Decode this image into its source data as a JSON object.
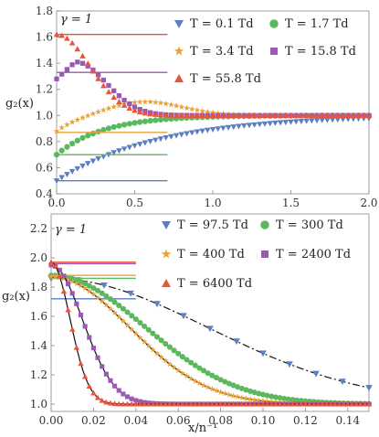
{
  "chart_data": [
    {
      "type": "scatter",
      "annotation": "γ = 1",
      "ylabel": "g₂(x)",
      "xlabel": "",
      "xlim": [
        0,
        2.0
      ],
      "ylim": [
        0.4,
        1.8
      ],
      "xticks": [
        "0.0",
        "0.5",
        "1.0",
        "1.5",
        "2.0"
      ],
      "yticks": [
        "0.4",
        "0.6",
        "0.8",
        "1.0",
        "1.2",
        "1.4",
        "1.6",
        "1.8"
      ],
      "legend_position": "top-right",
      "series": [
        {
          "name": "T = 0.1 Td",
          "marker": "triangle-down",
          "color": "#5b7fc0",
          "g0": 0.5,
          "tau": 0.65,
          "peak": 0.0,
          "peak_x": 0.0,
          "width": 1.0,
          "x_end": 2.0,
          "asymptote_y": 0.5,
          "asymptote_x_end": 0.71
        },
        {
          "name": "T = 1.7 Td",
          "marker": "circle",
          "color": "#5cb85c",
          "g0": 0.7,
          "tau": 0.3,
          "peak": 0.0,
          "peak_x": 0.0,
          "width": 1.0,
          "x_end": 2.0,
          "asymptote_y": 0.7,
          "asymptote_x_end": 0.71
        },
        {
          "name": "T = 3.4 Td",
          "marker": "star",
          "color": "#e8a23a",
          "g0": 0.88,
          "tau": 0.15,
          "peak": 0.11,
          "peak_x": 0.55,
          "width": 0.35,
          "x_end": 2.0,
          "asymptote_y": 0.87,
          "asymptote_x_end": 0.71
        },
        {
          "name": "T = 15.8 Td",
          "marker": "square",
          "color": "#9b59b6",
          "g0": 1.28,
          "tau": 0.1,
          "peak": 0.0,
          "peak_x": 0.0,
          "width": 1.0,
          "x_end": 2.0,
          "asymptote_y": 1.33,
          "asymptote_x_end": 0.71
        },
        {
          "name": "T = 55.8 Td",
          "marker": "triangle-up",
          "color": "#e8553a",
          "g0": 1.62,
          "tau": 0.2,
          "peak": 0.0,
          "peak_x": 0.0,
          "width": 1.0,
          "x_end": 2.0,
          "asymptote_y": 1.62,
          "asymptote_x_end": 0.71
        }
      ]
    },
    {
      "type": "scatter",
      "annotation": "γ = 1",
      "ylabel": "g₂(x)",
      "xlabel": "x/n⁻¹",
      "xlim": [
        0,
        0.15
      ],
      "ylim": [
        0.95,
        2.3
      ],
      "xticks": [
        "0.00",
        "0.02",
        "0.04",
        "0.06",
        "0.08",
        "0.10",
        "0.12",
        "0.14"
      ],
      "yticks": [
        "1.0",
        "1.2",
        "1.4",
        "1.6",
        "1.8",
        "2.0",
        "2.2"
      ],
      "legend_position": "top-right",
      "series": [
        {
          "name": "T = 97.5 Td",
          "marker": "triangle-down",
          "color": "#5b7fc0",
          "g0": 1.86,
          "sigma": 0.105,
          "x_end": 0.15,
          "asymptote_y": 1.72,
          "asymptote_x_end": 0.04
        },
        {
          "name": "T = 300 Td",
          "marker": "circle",
          "color": "#5cb85c",
          "g0": 1.88,
          "sigma": 0.062,
          "x_end": 0.15,
          "asymptote_y": 1.86,
          "asymptote_x_end": 0.04
        },
        {
          "name": "T = 400 Td",
          "marker": "star",
          "color": "#e8a23a",
          "g0": 1.87,
          "sigma": 0.052,
          "x_end": 0.15,
          "asymptote_y": 1.88,
          "asymptote_x_end": 0.04
        },
        {
          "name": "T = 2400 Td",
          "marker": "square",
          "color": "#9b59b6",
          "g0": 1.95,
          "sigma": 0.021,
          "x_end": 0.15,
          "asymptote_y": 1.96,
          "asymptote_x_end": 0.04
        },
        {
          "name": "T = 6400 Td",
          "marker": "triangle-up",
          "color": "#e8553a",
          "g0": 1.97,
          "sigma": 0.0125,
          "x_end": 0.15,
          "asymptote_y": 1.97,
          "asymptote_x_end": 0.04
        }
      ]
    }
  ]
}
